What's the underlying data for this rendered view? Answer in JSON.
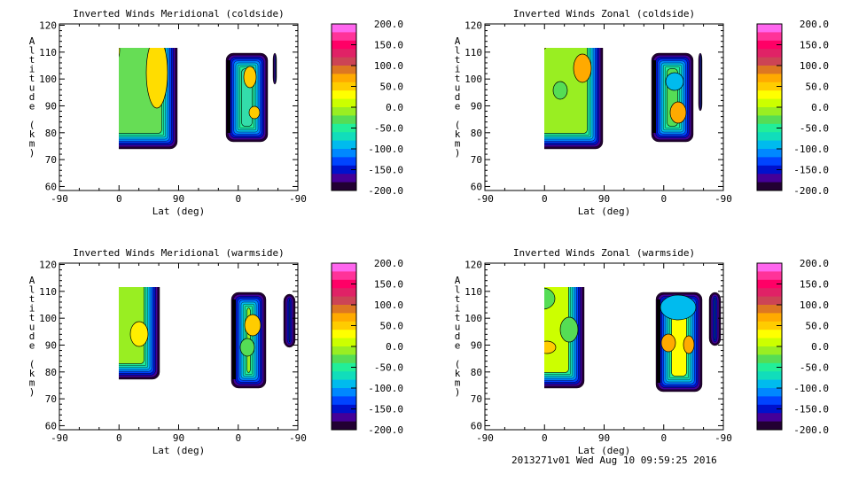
{
  "footer": "2013271v01 Wed Aug 10 09:59:25 2016",
  "chart_data": [
    {
      "type": "contour",
      "title": "Inverted Winds Meridional (coldside)",
      "xlabel": "Lat (deg)",
      "ylabel": "Altitude (km)",
      "xticks": [
        "-90",
        "0",
        "90",
        "0",
        "-90"
      ],
      "yticks": [
        "60",
        "70",
        "80",
        "90",
        "100",
        "110",
        "120"
      ],
      "ylim": [
        58.5,
        120.5
      ],
      "colorbar": {
        "min": -200,
        "max": 200,
        "levels": 20,
        "ticks": [
          "200.0",
          "150.0",
          "100.0",
          "50.0",
          "0.0",
          "-50.0",
          "-100.0",
          "-150.0",
          "-200.0"
        ]
      }
    },
    {
      "type": "contour",
      "title": "Inverted Winds Zonal (coldside)",
      "xlabel": "Lat (deg)",
      "ylabel": "Altitude (km)",
      "xticks": [
        "-90",
        "0",
        "90",
        "0",
        "-90"
      ],
      "yticks": [
        "60",
        "70",
        "80",
        "90",
        "100",
        "110",
        "120"
      ],
      "ylim": [
        58.5,
        120.5
      ],
      "colorbar": {
        "min": -200,
        "max": 200,
        "levels": 20,
        "ticks": [
          "200.0",
          "150.0",
          "100.0",
          "50.0",
          "0.0",
          "-50.0",
          "-100.0",
          "-150.0",
          "-200.0"
        ]
      }
    },
    {
      "type": "contour",
      "title": "Inverted Winds Meridional (warmside)",
      "xlabel": "Lat (deg)",
      "ylabel": "Altitude (km)",
      "xticks": [
        "-90",
        "0",
        "90",
        "0",
        "-90"
      ],
      "yticks": [
        "60",
        "70",
        "80",
        "90",
        "100",
        "110",
        "120"
      ],
      "ylim": [
        58.5,
        120.5
      ],
      "colorbar": {
        "min": -200,
        "max": 200,
        "levels": 20,
        "ticks": [
          "200.0",
          "150.0",
          "100.0",
          "50.0",
          "0.0",
          "-50.0",
          "-100.0",
          "-150.0",
          "-200.0"
        ]
      }
    },
    {
      "type": "contour",
      "title": "Inverted Winds Zonal (warmside)",
      "xlabel": "Lat (deg)",
      "ylabel": "Altitude (km)",
      "xticks": [
        "-90",
        "0",
        "90",
        "0",
        "-90"
      ],
      "yticks": [
        "60",
        "70",
        "80",
        "90",
        "100",
        "110",
        "120"
      ],
      "ylim": [
        58.5,
        120.5
      ],
      "colorbar": {
        "min": -200,
        "max": 200,
        "levels": 20,
        "ticks": [
          "200.0",
          "150.0",
          "100.0",
          "50.0",
          "0.0",
          "-50.0",
          "-100.0",
          "-150.0",
          "-200.0"
        ]
      }
    }
  ],
  "colors": {
    "palette_top_to_bottom": [
      "#ff66ee",
      "#ff3399",
      "#ff0066",
      "#e02266",
      "#cc4455",
      "#dd7722",
      "#ffaa00",
      "#ffcc00",
      "#ffff00",
      "#ccff00",
      "#99ee22",
      "#55dd55",
      "#22ee99",
      "#11ddbb",
      "#00bbee",
      "#0088ff",
      "#0044ff",
      "#0011cc",
      "#440099",
      "#220033"
    ]
  }
}
